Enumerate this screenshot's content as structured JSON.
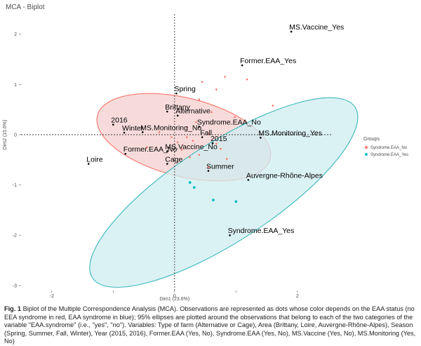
{
  "chart_data": {
    "type": "scatter",
    "title": "MCA - Biplot",
    "xlabel": "Dim1 (23.6%)",
    "ylabel": "Dim2 (15.6%)",
    "xlim": [
      -2.5,
      2.55
    ],
    "ylim": [
      -3.1,
      2.4
    ],
    "x_ticks": [
      -2,
      -1,
      0,
      1,
      2
    ],
    "x_tick_labels": [
      "-2",
      "",
      "0",
      "",
      "2"
    ],
    "y_ticks": [
      2,
      1,
      0,
      -1,
      -2,
      -3
    ],
    "y_tick_labels": [
      "2",
      "1",
      "0",
      "-1",
      "-2",
      "-3"
    ],
    "grid": false,
    "legend": {
      "title": "Groups",
      "placement": "right",
      "entries": [
        {
          "name": "Syndrome.EAA_No",
          "color": "#f8766d"
        },
        {
          "name": "Syndrome.EAA_Yes",
          "color": "#00bfc4"
        }
      ]
    },
    "ellipses": [
      {
        "group": "Syndrome.EAA_No",
        "center": [
          0.15,
          -0.05
        ],
        "rx": 1.45,
        "ry": 0.78,
        "angle_deg": 14,
        "color": "#f8766d",
        "fill": "#f4cfcf"
      },
      {
        "group": "Syndrome.EAA_Yes",
        "center": [
          0.8,
          -1.15
        ],
        "rx": 2.55,
        "ry": 0.98,
        "angle_deg": -33,
        "color": "#3cb8bb",
        "fill": "#cfeef0"
      }
    ],
    "observations": [
      {
        "group": "Syndrome.EAA_No",
        "points": [
          [
            0.4,
            0.7
          ],
          [
            0.68,
            0.9
          ],
          [
            0.82,
            1.15
          ],
          [
            0.45,
            1.05
          ],
          [
            1.6,
            0.58
          ],
          [
            0.98,
            0.35
          ],
          [
            0.6,
            0.45
          ],
          [
            0.35,
            0.25
          ],
          [
            0.55,
            0.02
          ],
          [
            0.2,
            -0.05
          ],
          [
            0.3,
            -0.12
          ],
          [
            0.68,
            -0.18
          ],
          [
            0.75,
            -0.28
          ],
          [
            0.4,
            -0.4
          ],
          [
            0.25,
            -0.45
          ],
          [
            0.05,
            -0.15
          ],
          [
            -0.05,
            -0.05
          ],
          [
            -0.25,
            0.05
          ],
          [
            0.12,
            -0.3
          ],
          [
            0.55,
            -0.65
          ],
          [
            -0.45,
            -0.25
          ],
          [
            1.18,
            1.1
          ],
          [
            0.2,
            0.15
          ],
          [
            0.85,
            -0.48
          ]
        ]
      },
      {
        "group": "Syndrome.EAA_Yes",
        "points": [
          [
            0.25,
            -0.95
          ],
          [
            0.32,
            -1.05
          ],
          [
            0.63,
            -1.3
          ],
          [
            1.0,
            -1.33
          ]
        ]
      }
    ],
    "variable_points": [
      {
        "label": "MS.Vaccine_Yes",
        "x": 1.9,
        "y": 2.05
      },
      {
        "label": "Former.EAA_Yes",
        "x": 1.1,
        "y": 1.38
      },
      {
        "label": "Spring",
        "x": 0.03,
        "y": 0.82
      },
      {
        "label": "Brittany",
        "x": -0.12,
        "y": 0.46
      },
      {
        "label": "Alternative",
        "x": 0.05,
        "y": 0.38
      },
      {
        "label": "2016",
        "x": -1.0,
        "y": 0.2
      },
      {
        "label": "Syndrome.EAA_No",
        "x": 0.4,
        "y": 0.16
      },
      {
        "label": "Winter",
        "x": -0.82,
        "y": 0.04
      },
      {
        "label": "MS.Monitoring_No",
        "x": -0.52,
        "y": 0.05
      },
      {
        "label": "Fall",
        "x": 0.45,
        "y": -0.05
      },
      {
        "label": "MS.Monitoring_Yes",
        "x": 1.4,
        "y": -0.06
      },
      {
        "label": "2015",
        "x": 0.62,
        "y": -0.17
      },
      {
        "label": "MS.Vaccine_No",
        "x": -0.12,
        "y": -0.33
      },
      {
        "label": "Former.EAA_No",
        "x": -0.8,
        "y": -0.38
      },
      {
        "label": "Cage",
        "x": -0.12,
        "y": -0.58
      },
      {
        "label": "Loire",
        "x": -1.4,
        "y": -0.58
      },
      {
        "label": "Summer",
        "x": 0.55,
        "y": -0.72
      },
      {
        "label": "Auvergne-Rhône-Alpes",
        "x": 1.2,
        "y": -0.9
      },
      {
        "label": "Syndrome.EAA_Yes",
        "x": 0.9,
        "y": -2.0
      }
    ],
    "reference_lines": {
      "x": 0,
      "y": 0,
      "style": "dashed"
    }
  },
  "caption": {
    "label": "Fig. 1",
    "text": "Biplot of the Multiple Correspondence Analysis (MCA). Observations are represented as dots whose color depends on the EAA status (no EEA syndrome in red, EAA syndrome in blue); 95% ellipses are plotted around the observations that belong to each of the two categories of the variable \"EAA.syndrome\" (i.e., \"yes\", \"no\"). Variables: Type of farm (Alternative or Cage), Area (Brittany, Loire, Auvergne-Rhône-Alpes), Season (Spring, Summer, Fall, Winter), Year (2015, 2016), Former.EAA (Yes, No), Syndrome.EAA (Yes, No), MS.Vaccine (Yes, No), MS.Monitoring (Yes, No)"
  }
}
